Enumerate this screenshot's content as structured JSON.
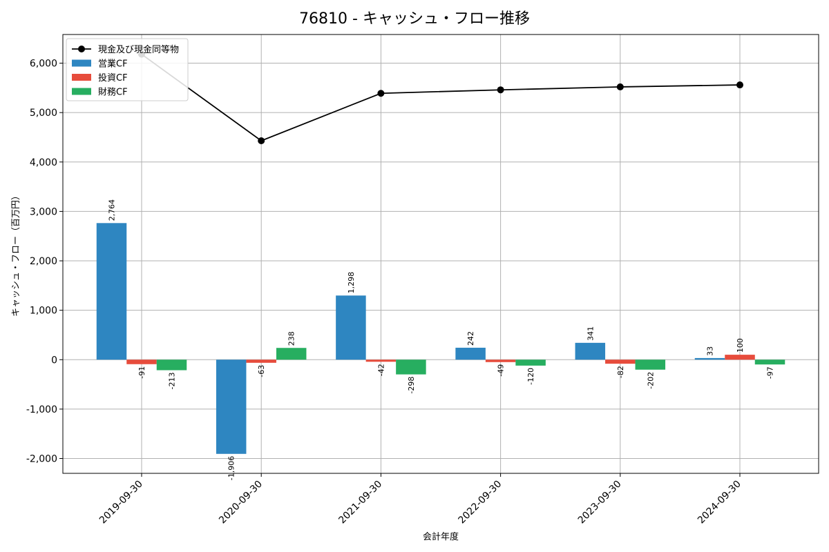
{
  "chart_data": {
    "type": "bar",
    "title": "76810 - キャッシュ・フロー推移",
    "xlabel": "会計年度",
    "ylabel": "キャッシュ・フロー（百万円）",
    "categories": [
      "2019-09-30",
      "2020-09-30",
      "2021-09-30",
      "2022-09-30",
      "2023-09-30",
      "2024-09-30"
    ],
    "ylim": [
      -2300,
      6580
    ],
    "yticks": [
      -2000,
      -1000,
      0,
      1000,
      2000,
      3000,
      4000,
      5000,
      6000
    ],
    "ytick_labels": [
      "-2,000",
      "-1,000",
      "0",
      "1,000",
      "2,000",
      "3,000",
      "4,000",
      "5,000",
      "6,000"
    ],
    "grid": true,
    "legend_position": "top-left",
    "series": [
      {
        "name": "営業CF",
        "kind": "bar",
        "color": "#2e86c1",
        "values": [
          2764,
          -1906,
          1298,
          242,
          341,
          33
        ],
        "labels": [
          "2,764",
          "-1,906",
          "1,298",
          "242",
          "341",
          "33"
        ]
      },
      {
        "name": "投資CF",
        "kind": "bar",
        "color": "#e74c3c",
        "values": [
          -91,
          -63,
          -42,
          -49,
          -82,
          100
        ],
        "labels": [
          "-91",
          "-63",
          "-42",
          "-49",
          "-82",
          "100"
        ]
      },
      {
        "name": "財務CF",
        "kind": "bar",
        "color": "#27ae60",
        "values": [
          -213,
          238,
          -298,
          -120,
          -202,
          -97
        ],
        "labels": [
          "-213",
          "238",
          "-298",
          "-120",
          "-202",
          "-97"
        ]
      },
      {
        "name": "現金及び現金同等物",
        "kind": "line",
        "color": "#000000",
        "values": [
          6180,
          4430,
          5390,
          5460,
          5520,
          5560
        ]
      }
    ]
  }
}
